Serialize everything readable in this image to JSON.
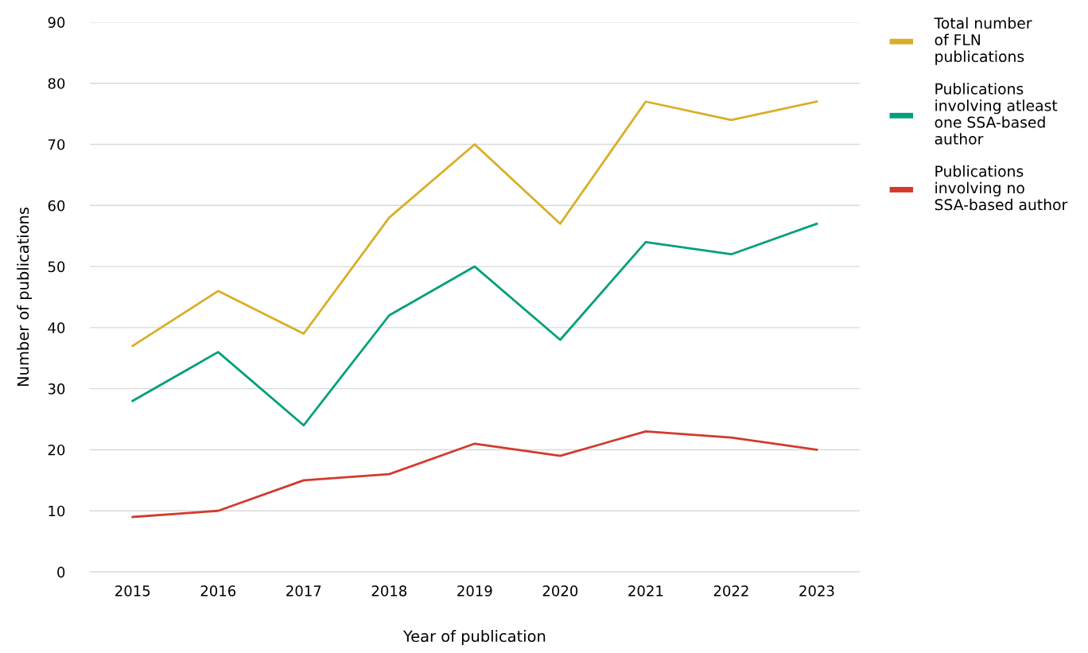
{
  "chart_data": {
    "type": "line",
    "xlabel": "Year of publication",
    "ylabel": "Number of publications",
    "categories": [
      "2015",
      "2016",
      "2017",
      "2018",
      "2019",
      "2020",
      "2021",
      "2022",
      "2023"
    ],
    "series": [
      {
        "name": "Total number\nof FLN\npublications",
        "color": "#d9ae27",
        "values": [
          37,
          46,
          39,
          58,
          70,
          57,
          77,
          74,
          77
        ]
      },
      {
        "name": "Publications\ninvolving atleast\none SSA-based\nauthor",
        "color": "#00a07a",
        "values": [
          28,
          36,
          24,
          42,
          50,
          38,
          54,
          52,
          57
        ]
      },
      {
        "name": "Publications\ninvolving no\nSSA-based author",
        "color": "#d33a2c",
        "values": [
          9,
          10,
          15,
          16,
          21,
          19,
          23,
          22,
          20
        ]
      }
    ],
    "ylim": [
      0,
      90
    ],
    "yticks": [
      0,
      10,
      20,
      30,
      40,
      50,
      60,
      70,
      80,
      90
    ],
    "grid": "y",
    "legend": "top right",
    "marker": "none",
    "line_style": "solid"
  }
}
